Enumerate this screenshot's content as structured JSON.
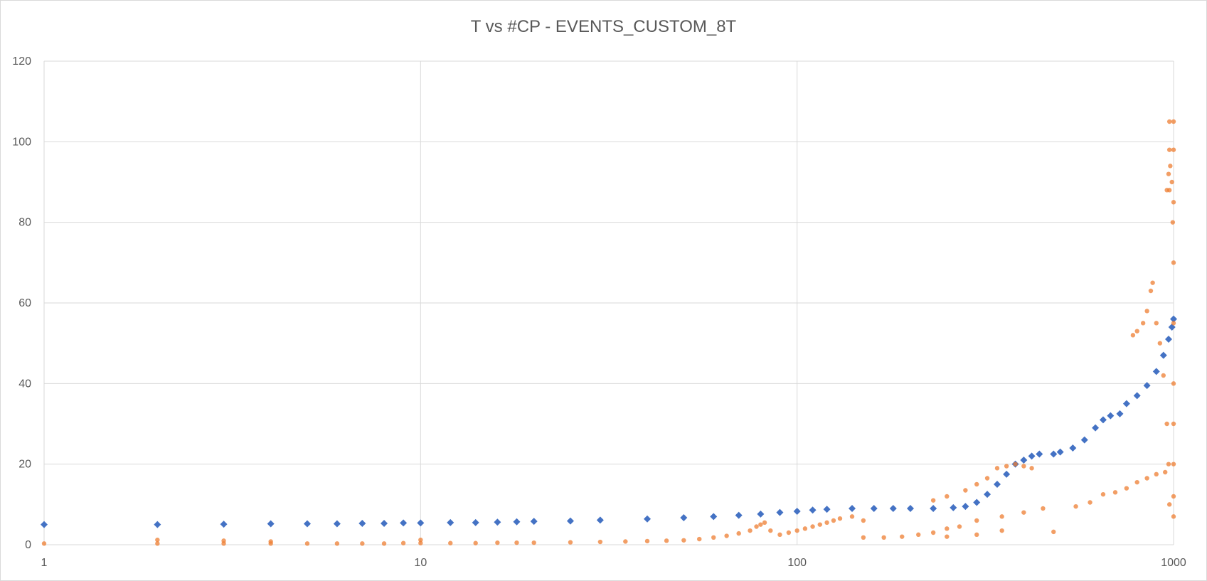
{
  "chart_data": {
    "type": "scatter",
    "title": "T vs #CP - EVENTS_CUSTOM_8T",
    "xlabel": "",
    "ylabel": "",
    "xscale": "log10",
    "xlim": [
      1,
      1000
    ],
    "ylim": [
      0,
      120
    ],
    "grid": true,
    "legend": "none",
    "x_ticks": [
      "1",
      "10",
      "100",
      "1000"
    ],
    "y_ticks": [
      "0",
      "20",
      "40",
      "60",
      "80",
      "100",
      "120"
    ],
    "series": [
      {
        "color": "#4472c4",
        "marker": "diamond",
        "points": [
          [
            1,
            5.0
          ],
          [
            2,
            5.0
          ],
          [
            3,
            5.1
          ],
          [
            4,
            5.2
          ],
          [
            5,
            5.2
          ],
          [
            6,
            5.2
          ],
          [
            7,
            5.3
          ],
          [
            8,
            5.3
          ],
          [
            9,
            5.4
          ],
          [
            10,
            5.4
          ],
          [
            12,
            5.5
          ],
          [
            14,
            5.5
          ],
          [
            16,
            5.6
          ],
          [
            18,
            5.7
          ],
          [
            20,
            5.8
          ],
          [
            25,
            5.9
          ],
          [
            30,
            6.1
          ],
          [
            40,
            6.4
          ],
          [
            50,
            6.7
          ],
          [
            60,
            7.0
          ],
          [
            70,
            7.3
          ],
          [
            80,
            7.6
          ],
          [
            90,
            8.0
          ],
          [
            100,
            8.3
          ],
          [
            110,
            8.6
          ],
          [
            120,
            8.8
          ],
          [
            140,
            9.0
          ],
          [
            160,
            9.0
          ],
          [
            180,
            9.0
          ],
          [
            200,
            9.0
          ],
          [
            230,
            9.0
          ],
          [
            260,
            9.2
          ],
          [
            280,
            9.5
          ],
          [
            300,
            10.5
          ],
          [
            320,
            12.5
          ],
          [
            340,
            15.0
          ],
          [
            360,
            17.5
          ],
          [
            380,
            20.0
          ],
          [
            400,
            21.0
          ],
          [
            420,
            22.0
          ],
          [
            440,
            22.5
          ],
          [
            480,
            22.5
          ],
          [
            500,
            23.0
          ],
          [
            540,
            24.0
          ],
          [
            580,
            26.0
          ],
          [
            620,
            29.0
          ],
          [
            650,
            31.0
          ],
          [
            680,
            32.0
          ],
          [
            720,
            32.5
          ],
          [
            750,
            35.0
          ],
          [
            800,
            37.0
          ],
          [
            850,
            39.5
          ],
          [
            900,
            43.0
          ],
          [
            940,
            47.0
          ],
          [
            970,
            51.0
          ],
          [
            990,
            54.0
          ],
          [
            1000,
            56.0
          ]
        ]
      },
      {
        "color": "#ed7d31",
        "marker": "circle",
        "points": [
          [
            1,
            0.3
          ],
          [
            2,
            0.3
          ],
          [
            2,
            1.2
          ],
          [
            3,
            0.3
          ],
          [
            3,
            1.0
          ],
          [
            4,
            0.3
          ],
          [
            4,
            0.8
          ],
          [
            5,
            0.3
          ],
          [
            6,
            0.3
          ],
          [
            7,
            0.3
          ],
          [
            8,
            0.3
          ],
          [
            9,
            0.4
          ],
          [
            10,
            0.4
          ],
          [
            10,
            1.2
          ],
          [
            12,
            0.4
          ],
          [
            14,
            0.4
          ],
          [
            16,
            0.5
          ],
          [
            18,
            0.5
          ],
          [
            20,
            0.5
          ],
          [
            25,
            0.6
          ],
          [
            30,
            0.7
          ],
          [
            35,
            0.8
          ],
          [
            40,
            0.9
          ],
          [
            45,
            1.0
          ],
          [
            50,
            1.1
          ],
          [
            55,
            1.4
          ],
          [
            60,
            1.8
          ],
          [
            65,
            2.2
          ],
          [
            70,
            2.8
          ],
          [
            75,
            3.5
          ],
          [
            78,
            4.5
          ],
          [
            80,
            5.0
          ],
          [
            82,
            5.5
          ],
          [
            85,
            3.5
          ],
          [
            90,
            2.5
          ],
          [
            95,
            3.0
          ],
          [
            100,
            3.5
          ],
          [
            105,
            4.0
          ],
          [
            110,
            4.5
          ],
          [
            115,
            5.0
          ],
          [
            120,
            5.5
          ],
          [
            125,
            6.0
          ],
          [
            130,
            6.5
          ],
          [
            140,
            7.0
          ],
          [
            150,
            6.0
          ],
          [
            150,
            1.8
          ],
          [
            170,
            1.8
          ],
          [
            190,
            2.0
          ],
          [
            210,
            2.5
          ],
          [
            230,
            3.0
          ],
          [
            250,
            4.0
          ],
          [
            270,
            4.5
          ],
          [
            230,
            11.0
          ],
          [
            250,
            12.0
          ],
          [
            280,
            13.5
          ],
          [
            300,
            15.0
          ],
          [
            320,
            16.5
          ],
          [
            340,
            19.0
          ],
          [
            360,
            19.5
          ],
          [
            380,
            20.0
          ],
          [
            400,
            19.5
          ],
          [
            420,
            19.0
          ],
          [
            250,
            2.0
          ],
          [
            300,
            2.5
          ],
          [
            350,
            3.5
          ],
          [
            300,
            6.0
          ],
          [
            350,
            7.0
          ],
          [
            400,
            8.0
          ],
          [
            450,
            9.0
          ],
          [
            480,
            3.2
          ],
          [
            550,
            9.5
          ],
          [
            600,
            10.5
          ],
          [
            650,
            12.5
          ],
          [
            700,
            13.0
          ],
          [
            750,
            14.0
          ],
          [
            800,
            15.5
          ],
          [
            850,
            16.5
          ],
          [
            900,
            17.5
          ],
          [
            950,
            18.0
          ],
          [
            780,
            52.0
          ],
          [
            800,
            53.0
          ],
          [
            830,
            55.0
          ],
          [
            850,
            58.0
          ],
          [
            870,
            63.0
          ],
          [
            880,
            65.0
          ],
          [
            900,
            55.0
          ],
          [
            920,
            50.0
          ],
          [
            940,
            42.0
          ],
          [
            960,
            30.0
          ],
          [
            970,
            20.0
          ],
          [
            975,
            10.0
          ],
          [
            960,
            88.0
          ],
          [
            970,
            92.0
          ],
          [
            980,
            94.0
          ],
          [
            990,
            90.0
          ],
          [
            995,
            80.0
          ],
          [
            1000,
            105.0
          ],
          [
            1000,
            98.0
          ],
          [
            1000,
            85.0
          ],
          [
            1000,
            70.0
          ],
          [
            1000,
            55.0
          ],
          [
            1000,
            40.0
          ],
          [
            1000,
            30.0
          ],
          [
            1000,
            20.0
          ],
          [
            1000,
            12.0
          ],
          [
            1000,
            7.0
          ],
          [
            975,
            105.0
          ],
          [
            975,
            98.0
          ],
          [
            975,
            88.0
          ]
        ]
      }
    ]
  }
}
